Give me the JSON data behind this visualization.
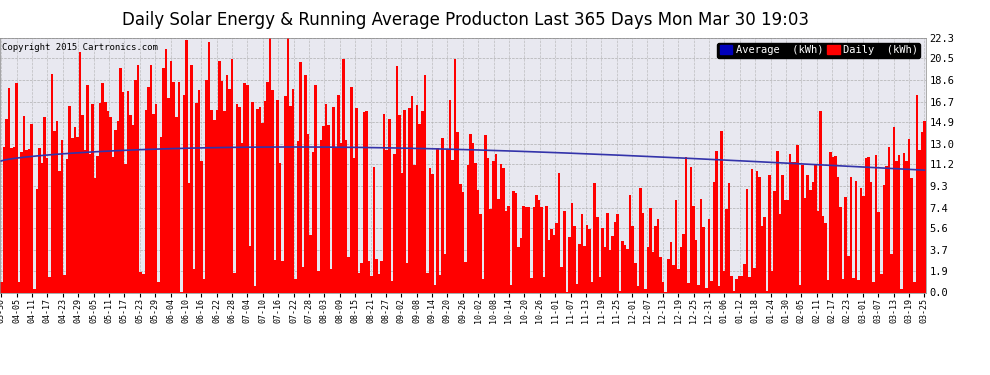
{
  "title": "Daily Solar Energy & Running Average Producton Last 365 Days Mon Mar 30 19:03",
  "copyright": "Copyright 2015 Cartronics.com",
  "yticks": [
    0.0,
    1.9,
    3.7,
    5.6,
    7.4,
    9.3,
    11.2,
    13.0,
    14.9,
    16.7,
    18.6,
    20.5,
    22.3
  ],
  "bar_color": "#FF0000",
  "avg_color": "#3333AA",
  "background_color": "#FFFFFF",
  "plot_bg_color": "#E8E8F0",
  "grid_color": "#AAAAAA",
  "title_fontsize": 12,
  "legend_avg_color": "#0000BB",
  "legend_daily_color": "#FF0000",
  "ymax": 22.3,
  "xtick_labels": [
    "03-30",
    "04-05",
    "04-11",
    "04-17",
    "04-23",
    "04-29",
    "05-05",
    "05-11",
    "05-17",
    "05-23",
    "05-29",
    "06-04",
    "06-10",
    "06-16",
    "06-22",
    "06-28",
    "07-04",
    "07-10",
    "07-16",
    "07-22",
    "07-28",
    "08-03",
    "08-09",
    "08-15",
    "08-21",
    "08-27",
    "09-02",
    "09-08",
    "09-14",
    "09-20",
    "09-26",
    "10-02",
    "10-08",
    "10-14",
    "10-20",
    "10-26",
    "11-01",
    "11-07",
    "11-13",
    "11-19",
    "11-25",
    "12-01",
    "12-07",
    "12-13",
    "12-19",
    "12-25",
    "12-31",
    "01-06",
    "01-12",
    "01-18",
    "01-24",
    "01-30",
    "02-05",
    "02-11",
    "02-17",
    "02-23",
    "03-01",
    "03-07",
    "03-13",
    "03-19",
    "03-25"
  ]
}
